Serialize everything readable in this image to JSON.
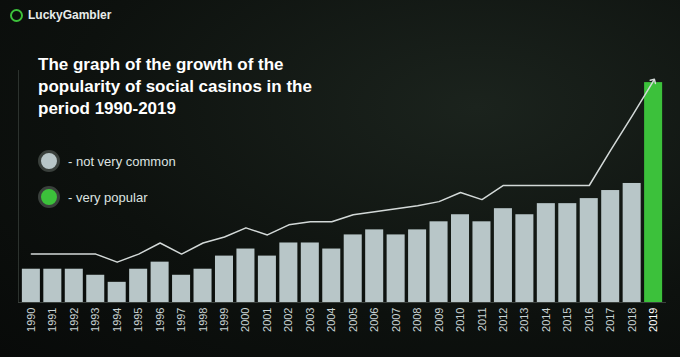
{
  "chart_data": {
    "type": "bar",
    "brand": "LuckyGambler",
    "title": "The graph of the growth of the popularity of social casinos in the period 1990-2019",
    "categories": [
      "1990",
      "1991",
      "1992",
      "1993",
      "1994",
      "1995",
      "1996",
      "1997",
      "1998",
      "1999",
      "2000",
      "2001",
      "2002",
      "2003",
      "2004",
      "2005",
      "2006",
      "2007",
      "2008",
      "2009",
      "2010",
      "2011",
      "2012",
      "2013",
      "2014",
      "2015",
      "2016",
      "2017",
      "2018",
      "2019"
    ],
    "values": [
      33,
      33,
      33,
      27,
      20,
      33,
      40,
      27,
      33,
      46,
      53,
      46,
      59,
      59,
      53,
      67,
      72,
      67,
      72,
      80,
      87,
      80,
      93,
      87,
      98,
      98,
      103,
      111,
      118,
      218
    ],
    "colors": [
      "#b8c6c8",
      "#b8c6c8",
      "#b8c6c8",
      "#b8c6c8",
      "#b8c6c8",
      "#b8c6c8",
      "#b8c6c8",
      "#b8c6c8",
      "#b8c6c8",
      "#b8c6c8",
      "#b8c6c8",
      "#b8c6c8",
      "#b8c6c8",
      "#b8c6c8",
      "#b8c6c8",
      "#b8c6c8",
      "#b8c6c8",
      "#b8c6c8",
      "#b8c6c8",
      "#b8c6c8",
      "#b8c6c8",
      "#b8c6c8",
      "#b8c6c8",
      "#b8c6c8",
      "#b8c6c8",
      "#b8c6c8",
      "#b8c6c8",
      "#b8c6c8",
      "#b8c6c8",
      "#3cc13b"
    ],
    "trend": {
      "type": "line",
      "color": "#d3d9d8",
      "marker": "arrow",
      "values": [
        48,
        48,
        48,
        48,
        40,
        48,
        59,
        48,
        59,
        65,
        74,
        67,
        77,
        80,
        80,
        87,
        90,
        93,
        96,
        100,
        109,
        102,
        116,
        116,
        116,
        116,
        116,
        151,
        185,
        220
      ]
    },
    "legend": "top-left",
    "legend_entries": [
      {
        "label": "- not very common",
        "color": "#b8c6c8"
      },
      {
        "label": "- very popular",
        "color": "#3cc13b"
      }
    ],
    "ylim": [
      0,
      230
    ],
    "grid": false,
    "tick_labels": "x"
  }
}
